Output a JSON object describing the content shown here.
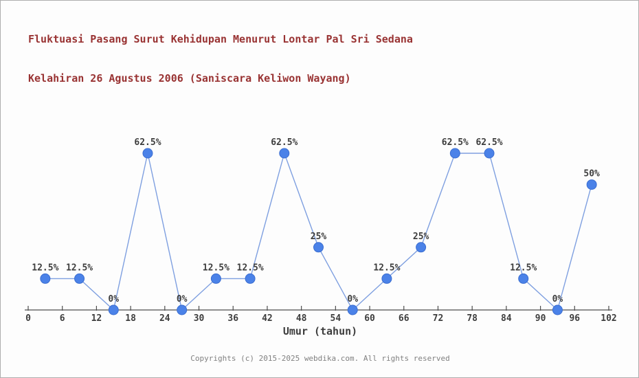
{
  "page": {
    "background": "#fdfdfd",
    "border_color": "#aeaeae"
  },
  "chart_data": {
    "type": "line",
    "title": "Fluktuasi Pasang Surut Kehidupan Menurut Lontar Pal Sri Sedana Kelahiran 26 Agustus 2006 (Saniscara Keliwon Wayang)",
    "title_line1": "Fluktuasi Pasang Surut Kehidupan Menurut Lontar Pal Sri Sedana",
    "title_line2": "Kelahiran 26 Agustus 2006 (Saniscara Keliwon Wayang)",
    "xlabel": "Umur (tahun)",
    "ylabel": "",
    "x": [
      3,
      9,
      15,
      21,
      27,
      33,
      39,
      45,
      51,
      57,
      63,
      69,
      75,
      81,
      87,
      93,
      99
    ],
    "values": [
      12.5,
      12.5,
      0,
      62.5,
      0,
      12.5,
      12.5,
      62.5,
      25,
      0,
      12.5,
      25,
      62.5,
      62.5,
      12.5,
      0,
      50
    ],
    "point_labels": [
      "12.5%",
      "12.5%",
      "0%",
      "62.5%",
      "0%",
      "12.5%",
      "12.5%",
      "62.5%",
      "25%",
      "0%",
      "12.5%",
      "25%",
      "62.5%",
      "62.5%",
      "12.5%",
      "0%",
      "50%"
    ],
    "x_ticks": [
      0,
      6,
      12,
      18,
      24,
      30,
      36,
      42,
      48,
      54,
      60,
      66,
      72,
      78,
      84,
      90,
      96,
      102
    ],
    "xlim": [
      0,
      102
    ],
    "ylim": [
      0,
      100
    ],
    "grid": false,
    "legend": "none",
    "colors": {
      "title": "#993333",
      "line": "#7e9fe0",
      "marker_fill": "#4b82e8",
      "marker_stroke": "#3a6dd0",
      "axis": "#4d4d4d",
      "tick_text": "#3d3d3d",
      "label_text": "#3d3d3d"
    }
  },
  "footer": {
    "text": "Copyrights (c) 2015-2025 webdika.com. All rights reserved"
  }
}
